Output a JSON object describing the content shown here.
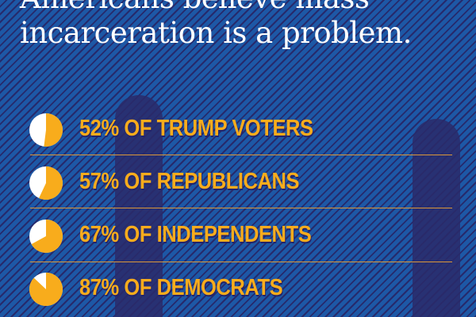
{
  "title": [
    "Americans believe mass",
    "incarceration is a problem."
  ],
  "colors": {
    "background": "#1d58a6",
    "stripe": "#262a6c",
    "accent": "#f8ac1c",
    "pie_remainder": "#ffffff"
  },
  "chart_data": {
    "type": "pie",
    "title": "Americans believe mass incarceration is a problem.",
    "items": [
      {
        "label": "52% OF TRUMP VOTERS",
        "value": 52
      },
      {
        "label": "57% OF REPUBLICANS",
        "value": 57
      },
      {
        "label": "67% OF INDEPENDENTS",
        "value": 67
      },
      {
        "label": "87% OF DEMOCRATS",
        "value": 87
      }
    ]
  }
}
